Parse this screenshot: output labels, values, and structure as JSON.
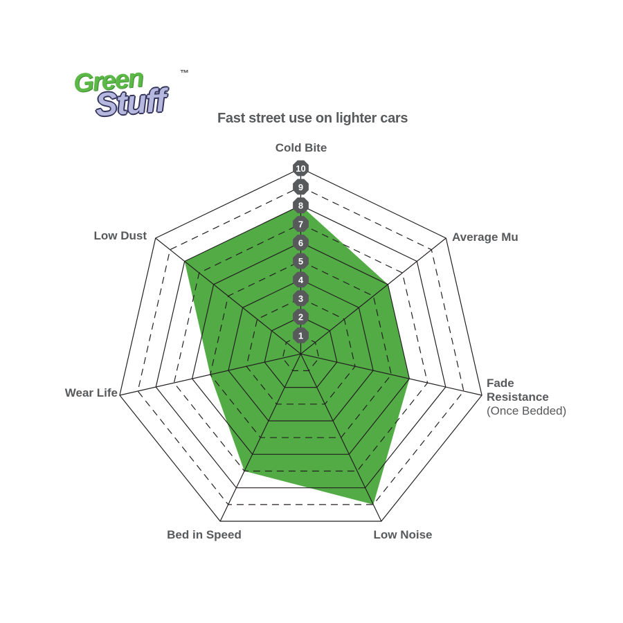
{
  "logo": {
    "word1": "Green",
    "word2": "Stuff",
    "trademark": "™"
  },
  "chart_data": {
    "type": "radar",
    "title": "Fast street use on lighter cars",
    "scale": {
      "min": 1,
      "max": 10,
      "rings": 10,
      "ring_style": "even rings solid, odd rings dashed"
    },
    "tick_labels": [
      "1",
      "2",
      "3",
      "4",
      "5",
      "6",
      "7",
      "8",
      "9",
      "10"
    ],
    "axes": [
      {
        "label": "Cold Bite",
        "value": 8
      },
      {
        "label": "Average Mu",
        "value": 6
      },
      {
        "label": "Fade Resistance",
        "label_lines": [
          "Fade",
          "Resistance"
        ],
        "sublabel": "(Once Bedded)",
        "value": 6
      },
      {
        "label": "Low Noise",
        "value": 9
      },
      {
        "label": "Bed in Speed",
        "value": 7
      },
      {
        "label": "Wear Life",
        "value": 5
      },
      {
        "label": "Low Dust",
        "value": 8
      }
    ],
    "series": [
      {
        "name": "Green Stuff",
        "values": [
          8,
          6,
          6,
          9,
          7,
          5,
          8
        ]
      }
    ]
  },
  "colors": {
    "fill_green": "#52ab45",
    "grid_line": "#231f20",
    "badge_bg": "#58595b",
    "badge_text": "#ffffff",
    "label_text": "#58595b",
    "logo_green": "#5cb847",
    "logo_lavender": "#b7b8df"
  }
}
